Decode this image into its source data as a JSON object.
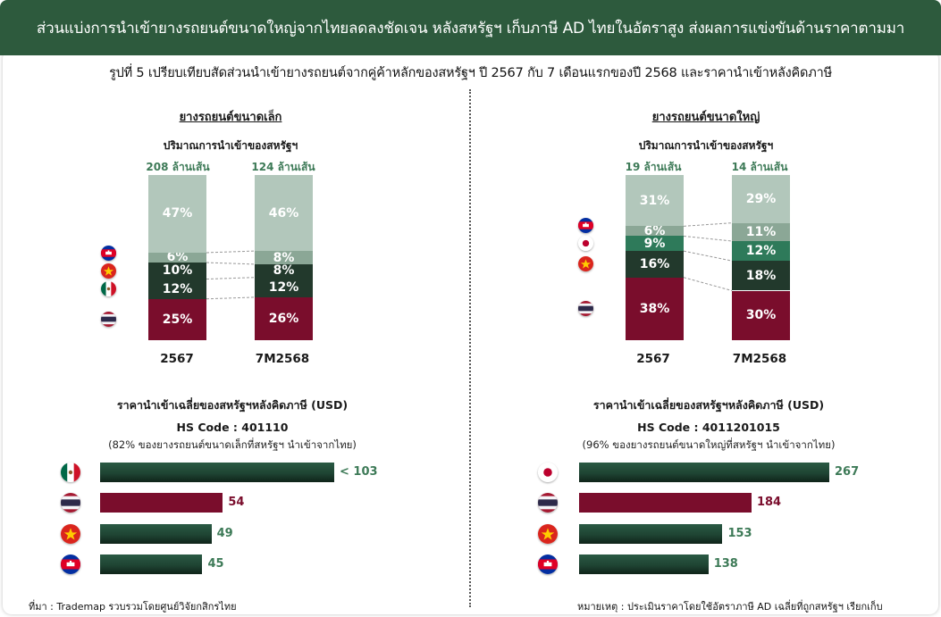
{
  "header": {
    "title": "ส่วนแบ่งการนำเข้ายางรถยนต์ขนาดใหญ่จากไทยลดลงชัดเจน หลังสหรัฐฯ เก็บภาษี AD ไทยในอัตราสูง ส่งผลการแข่งขันด้านราคาตามมา"
  },
  "figure_title": "รูปที่ 5 เปรียบเทียบสัดส่วนนำเข้ายางรถยนต์จากคู่ค้าหลักของสหรัฐฯ ปี 2567 กับ 7 เดือนแรกของปี 2568 และราคานำเข้าหลังคิดภาษี",
  "colors": {
    "thailand": "#7a0d2c",
    "vietnam_seg": "#22392c",
    "mexico_seg": "#22392c",
    "japan_seg": "#2e7a5a",
    "cambodia_seg": "#8ba796",
    "others_seg": "#b2c7bb",
    "green_bar": "#1f4433",
    "green_text": "#3d7a57"
  },
  "footer": {
    "source": "ที่มา : Trademap รวบรวมโดยศูนย์วิจัยกสิกรไทย",
    "note": "หมายเหตุ : ประเมินราคาโดยใช้อัตราภาษี AD เฉลี่ยที่ถูกสหรัฐฯ เรียกเก็บ"
  },
  "chart_data": [
    {
      "type": "bar",
      "stacked": true,
      "panel_title": "ยางรถยนต์ขนาดเล็ก",
      "title": "ปริมาณการนำเข้าของสหรัฐฯ",
      "categories": [
        "2567",
        "7M2568"
      ],
      "totals": [
        "208 ล้านเส้น",
        "124 ล้านเส้น"
      ],
      "series": [
        {
          "country": "thailand",
          "flag": "thailand-flag",
          "values": [
            25,
            26
          ],
          "labels": [
            "25%",
            "26%"
          ]
        },
        {
          "country": "mexico",
          "flag": "mexico-flag",
          "values": [
            12,
            12
          ],
          "labels": [
            "12%",
            "12%"
          ]
        },
        {
          "country": "vietnam",
          "flag": "vietnam-flag",
          "values": [
            10,
            8
          ],
          "labels": [
            "10%",
            "8%"
          ]
        },
        {
          "country": "cambodia",
          "flag": "cambodia-flag",
          "values": [
            6,
            8
          ],
          "labels": [
            "6%",
            "8%"
          ]
        },
        {
          "country": "others",
          "values": [
            47,
            46
          ],
          "labels": [
            "47%",
            "46%"
          ]
        }
      ],
      "ylim": [
        0,
        100
      ]
    },
    {
      "type": "bar",
      "stacked": true,
      "panel_title": "ยางรถยนต์ขนาดใหญ่",
      "title": "ปริมาณการนำเข้าของสหรัฐฯ",
      "categories": [
        "2567",
        "7M2568"
      ],
      "totals": [
        "19 ล้านเส้น",
        "14 ล้านเส้น"
      ],
      "series": [
        {
          "country": "thailand",
          "flag": "thailand-flag",
          "values": [
            38,
            30
          ],
          "labels": [
            "38%",
            "30%"
          ]
        },
        {
          "country": "vietnam",
          "flag": "vietnam-flag",
          "values": [
            16,
            18
          ],
          "labels": [
            "16%",
            "18%"
          ]
        },
        {
          "country": "japan",
          "flag": "japan-flag",
          "values": [
            9,
            12
          ],
          "labels": [
            "9%",
            "12%"
          ]
        },
        {
          "country": "cambodia",
          "flag": "cambodia-flag",
          "values": [
            6,
            11
          ],
          "labels": [
            "6%",
            "11%"
          ]
        },
        {
          "country": "others",
          "values": [
            31,
            29
          ],
          "labels": [
            "31%",
            "29%"
          ]
        }
      ],
      "ylim": [
        0,
        100
      ]
    },
    {
      "type": "bar",
      "orientation": "horizontal",
      "title": "ราคานำเข้าเฉลี่ยของสหรัฐฯหลังคิดภาษี (USD)",
      "hs_code": "HS Code : 401110",
      "hs_note": "(82% ของยางรถยนต์ขนาดเล็กที่สหรัฐฯ นำเข้าจากไทย)",
      "series": [
        {
          "country": "mexico",
          "flag": "mexico-flag",
          "value": 103,
          "label": "< 103"
        },
        {
          "country": "thailand",
          "flag": "thailand-flag",
          "value": 54,
          "label": "54"
        },
        {
          "country": "vietnam",
          "flag": "vietnam-flag",
          "value": 49,
          "label": "49"
        },
        {
          "country": "cambodia",
          "flag": "cambodia-flag",
          "value": 45,
          "label": "45"
        }
      ]
    },
    {
      "type": "bar",
      "orientation": "horizontal",
      "title": "ราคานำเข้าเฉลี่ยของสหรัฐฯหลังคิดภาษี (USD)",
      "hs_code": "HS Code : 4011201015",
      "hs_note": "(96% ของยางรถยนต์ขนาดใหญ่ที่สหรัฐฯ นำเข้าจากไทย)",
      "series": [
        {
          "country": "japan",
          "flag": "japan-flag",
          "value": 267,
          "label": "267"
        },
        {
          "country": "thailand",
          "flag": "thailand-flag",
          "value": 184,
          "label": "184"
        },
        {
          "country": "vietnam",
          "flag": "vietnam-flag",
          "value": 153,
          "label": "153"
        },
        {
          "country": "cambodia",
          "flag": "cambodia-flag",
          "value": 138,
          "label": "138"
        }
      ]
    }
  ]
}
